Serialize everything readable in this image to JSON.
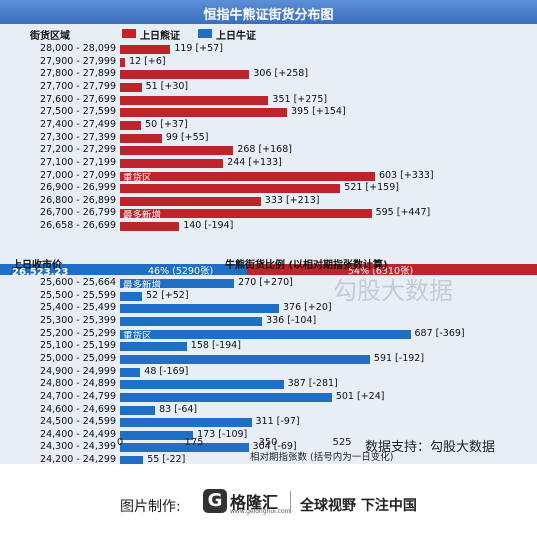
{
  "chart_data": {
    "type": "bar",
    "title": "恒指牛熊证街货分布图",
    "y_header": "街货区域",
    "legend": [
      {
        "name": "上日熊证",
        "color": "#c0242b"
      },
      {
        "name": "上日牛证",
        "color": "#1f6fc6"
      }
    ],
    "xlabel": "相对期指张数 (括号内为一日变化)",
    "xticks": [
      "0",
      "175",
      "350",
      "525"
    ],
    "xlim": [
      0,
      700
    ],
    "bear_series": [
      {
        "range": "28,000 - 28,099",
        "value": 119,
        "label": "119 [+57]"
      },
      {
        "range": "27,900 - 27,999",
        "value": 12,
        "label": "12 [+6]"
      },
      {
        "range": "27,800 - 27,899",
        "value": 306,
        "label": "306 [+258]"
      },
      {
        "range": "27,700 - 27,799",
        "value": 51,
        "label": "51 [+30]"
      },
      {
        "range": "27,600 - 27,699",
        "value": 351,
        "label": "351 [+275]"
      },
      {
        "range": "27,500 - 27,599",
        "value": 395,
        "label": "395 [+154]"
      },
      {
        "range": "27,400 - 27,499",
        "value": 50,
        "label": "50 [+37]"
      },
      {
        "range": "27,300 - 27,399",
        "value": 99,
        "label": "99 [+55]"
      },
      {
        "range": "27,200 - 27,299",
        "value": 268,
        "label": "268 [+168]"
      },
      {
        "range": "27,100 - 27,199",
        "value": 244,
        "label": "244 [+133]"
      },
      {
        "range": "27,000 - 27,099",
        "value": 603,
        "label": "603 [+333]",
        "tag": "重货区"
      },
      {
        "range": "26,900 - 26,999",
        "value": 521,
        "label": "521 [+159]"
      },
      {
        "range": "26,800 - 26,899",
        "value": 333,
        "label": "333 [+213]"
      },
      {
        "range": "26,700 - 26,799",
        "value": 595,
        "label": "595 [+447]",
        "tag": "最多新增"
      },
      {
        "range": "26,658 - 26,699",
        "value": 140,
        "label": "140 [-194]"
      }
    ],
    "price": {
      "label": "上日收市价",
      "value": "26,523.23",
      "ratio_title": "牛熊街货比例 (以相对期指张数计算)",
      "bull_pct": "46% (5290张)",
      "bear_pct": "54% (6310张)",
      "bull_fraction": 0.46,
      "bear_fraction": 0.54
    },
    "bull_series": [
      {
        "range": "25,600 - 25,664",
        "value": 270,
        "label": "270 [+270]",
        "tag": "最多新增"
      },
      {
        "range": "25,500 - 25,599",
        "value": 52,
        "label": "52 [+52]"
      },
      {
        "range": "25,400 - 25,499",
        "value": 376,
        "label": "376 [+20]"
      },
      {
        "range": "25,300 - 25,399",
        "value": 336,
        "label": "336 [-104]"
      },
      {
        "range": "25,200 - 25,299",
        "value": 687,
        "label": "687 [-369]",
        "tag": "重货区"
      },
      {
        "range": "25,100 - 25,199",
        "value": 158,
        "label": "158 [-194]"
      },
      {
        "range": "25,000 - 25,099",
        "value": 591,
        "label": "591 [-192]"
      },
      {
        "range": "24,900 - 24,999",
        "value": 48,
        "label": "48 [-169]"
      },
      {
        "range": "24,800 - 24,899",
        "value": 387,
        "label": "387 [-281]"
      },
      {
        "range": "24,700 - 24,799",
        "value": 501,
        "label": "501 [+24]"
      },
      {
        "range": "24,600 - 24,699",
        "value": 83,
        "label": "83 [-64]"
      },
      {
        "range": "24,500 - 24,599",
        "value": 311,
        "label": "311 [-97]"
      },
      {
        "range": "24,400 - 24,499",
        "value": 173,
        "label": "173 [-109]"
      },
      {
        "range": "24,300 - 24,399",
        "value": 304,
        "label": "304 [-69]"
      },
      {
        "range": "24,200 - 24,299",
        "value": 55,
        "label": "55 [-22]"
      }
    ]
  },
  "watermark": "勾股大数据",
  "data_support": "数据支持：勾股大数据",
  "footer": {
    "made_by": "图片制作:",
    "logo_name": "格隆汇",
    "logo_url": "www.gelonghui.com",
    "slogan": "全球视野 下注中国"
  }
}
